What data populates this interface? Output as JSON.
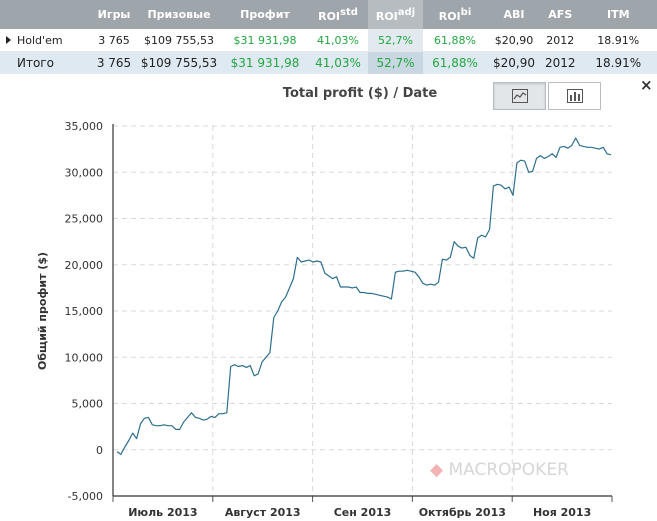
{
  "stats_table": {
    "headers": [
      {
        "label": "",
        "sup": ""
      },
      {
        "label": "Игры",
        "sup": ""
      },
      {
        "label": "Призовые",
        "sup": ""
      },
      {
        "label": "Профит",
        "sup": ""
      },
      {
        "label": "ROI",
        "sup": "std"
      },
      {
        "label": "ROI",
        "sup": "adj"
      },
      {
        "label": "ROI",
        "sup": "bi"
      },
      {
        "label": "ABI",
        "sup": ""
      },
      {
        "label": "AFS",
        "sup": ""
      },
      {
        "label": "ITM",
        "sup": ""
      }
    ],
    "rows": [
      {
        "name": "Hold'em",
        "games": "3 765",
        "prize": "$109 755,53",
        "profit": "$31 931,98",
        "roi_std": "41,03%",
        "roi_adj": "52,7%",
        "roi_bi": "61,88%",
        "abi": "$20,90",
        "afs": "2012",
        "itm": "18.91%"
      },
      {
        "name": "Итого",
        "games": "3 765",
        "prize": "$109 755,53",
        "profit": "$31 931,98",
        "roi_std": "41,03%",
        "roi_adj": "52,7%",
        "roi_bi": "61,88%",
        "abi": "$20,90",
        "afs": "2012",
        "itm": "18.91%"
      }
    ]
  },
  "controls": {
    "line_view_icon": "line-chart-icon",
    "bar_view_icon": "bar-chart-icon",
    "close_label": "×"
  },
  "watermark": {
    "text": "MACROPOKER"
  },
  "chart_data": {
    "type": "line",
    "title": "Total profit ($) / Date",
    "xlabel": "",
    "ylabel": "Общий профит ($)",
    "ylim": [
      -5000,
      35000
    ],
    "yticks": [
      -5000,
      0,
      5000,
      10000,
      15000,
      20000,
      25000,
      30000,
      35000
    ],
    "ytick_labels": [
      "-5,000",
      "0",
      "5,000",
      "10,000",
      "15,000",
      "20,000",
      "25,000",
      "30,000",
      "35,000"
    ],
    "x_tick_labels": [
      "Июль 2013",
      "Август 2013",
      "Сен 2013",
      "Октябрь 2013",
      "Ноя 2013"
    ],
    "grid": true,
    "line_color": "#2d6f8e",
    "series": [
      {
        "values": [
          -200,
          -500,
          300,
          1000,
          1800,
          1200,
          2800,
          3400,
          3500,
          2700,
          2600,
          2600,
          2700,
          2600,
          2600,
          2200,
          2200,
          3000,
          3500,
          4000,
          3500,
          3400,
          3200,
          3300,
          3600,
          3500,
          3900,
          3900,
          4000,
          9000,
          9200,
          9000,
          9100,
          8900,
          9100,
          8000,
          8200,
          9500,
          10000,
          10500,
          14300,
          15000,
          16000,
          16500,
          17500,
          18500,
          20800,
          20300,
          20400,
          20500,
          20300,
          20400,
          20300,
          19100,
          18800,
          18500,
          18700,
          17600,
          17600,
          17600,
          17500,
          17600,
          17000,
          17000,
          16900,
          16900,
          16800,
          16700,
          16600,
          16500,
          16300,
          19200,
          19300,
          19300,
          19400,
          19300,
          19200,
          18700,
          18000,
          17800,
          17900,
          17800,
          18100,
          20600,
          20500,
          20800,
          22500,
          22000,
          21800,
          21900,
          21000,
          20700,
          22900,
          23200,
          23000,
          23800,
          28500,
          28700,
          28600,
          28200,
          28400,
          27500,
          31000,
          31300,
          31200,
          30000,
          30100,
          31500,
          31800,
          31500,
          31700,
          32000,
          31600,
          32700,
          32800,
          32600,
          32900,
          33700,
          32900,
          32800,
          32700,
          32700,
          32600,
          32500,
          32700,
          32000,
          31900
        ]
      }
    ]
  }
}
